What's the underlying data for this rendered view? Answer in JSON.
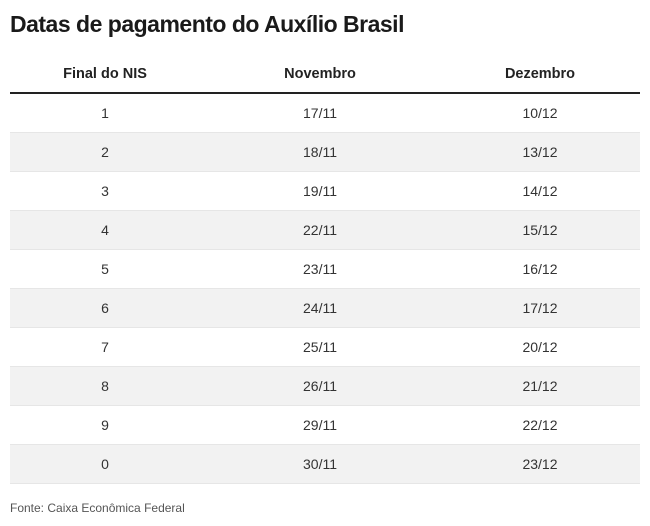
{
  "title": "Datas de pagamento do Auxílio Brasil",
  "table": {
    "headers": [
      "Final do NIS",
      "Novembro",
      "Dezembro"
    ],
    "rows": [
      [
        "1",
        "17/11",
        "10/12"
      ],
      [
        "2",
        "18/11",
        "13/12"
      ],
      [
        "3",
        "19/11",
        "14/12"
      ],
      [
        "4",
        "22/11",
        "15/12"
      ],
      [
        "5",
        "23/11",
        "16/12"
      ],
      [
        "6",
        "24/11",
        "17/12"
      ],
      [
        "7",
        "25/11",
        "20/12"
      ],
      [
        "8",
        "26/11",
        "21/12"
      ],
      [
        "9",
        "29/11",
        "22/12"
      ],
      [
        "0",
        "30/11",
        "23/12"
      ]
    ]
  },
  "source": "Fonte: Caixa Econômica Federal"
}
